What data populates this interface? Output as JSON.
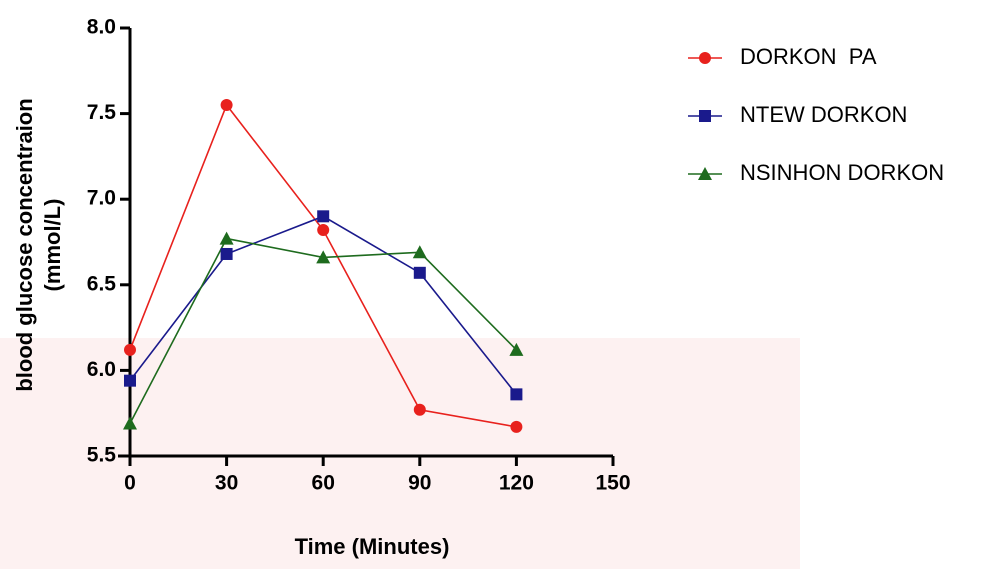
{
  "chart_data": {
    "type": "line",
    "xlabel": "Time (Minutes)",
    "ylabel": [
      "blood glucose concentraion",
      "(mmol/L)"
    ],
    "x": [
      0,
      30,
      60,
      90,
      120
    ],
    "xlim": [
      0,
      150
    ],
    "xticks": [
      0,
      30,
      60,
      90,
      120,
      150
    ],
    "ylim": [
      5.5,
      8.0
    ],
    "yticks": [
      5.5,
      {
        "value": 6,
        "label": "6.0"
      },
      6.5,
      {
        "value": 7,
        "label": "7.0"
      },
      7.5,
      {
        "value": 8,
        "label": "8.0"
      }
    ],
    "legend": "top-right",
    "series": [
      {
        "name": "DORKON  PA",
        "color": "#e8211d",
        "marker": "circle",
        "values": [
          6.12,
          7.55,
          6.82,
          5.77,
          5.67
        ]
      },
      {
        "name": "NTEW DORKON",
        "color": "#1a1a8c",
        "marker": "square",
        "values": [
          5.94,
          6.68,
          6.9,
          6.57,
          5.86
        ]
      },
      {
        "name": "NSINHON DORKON",
        "color": "#1e6b1e",
        "marker": "triangle",
        "values": [
          5.69,
          6.77,
          6.66,
          6.69,
          6.12
        ]
      }
    ]
  }
}
